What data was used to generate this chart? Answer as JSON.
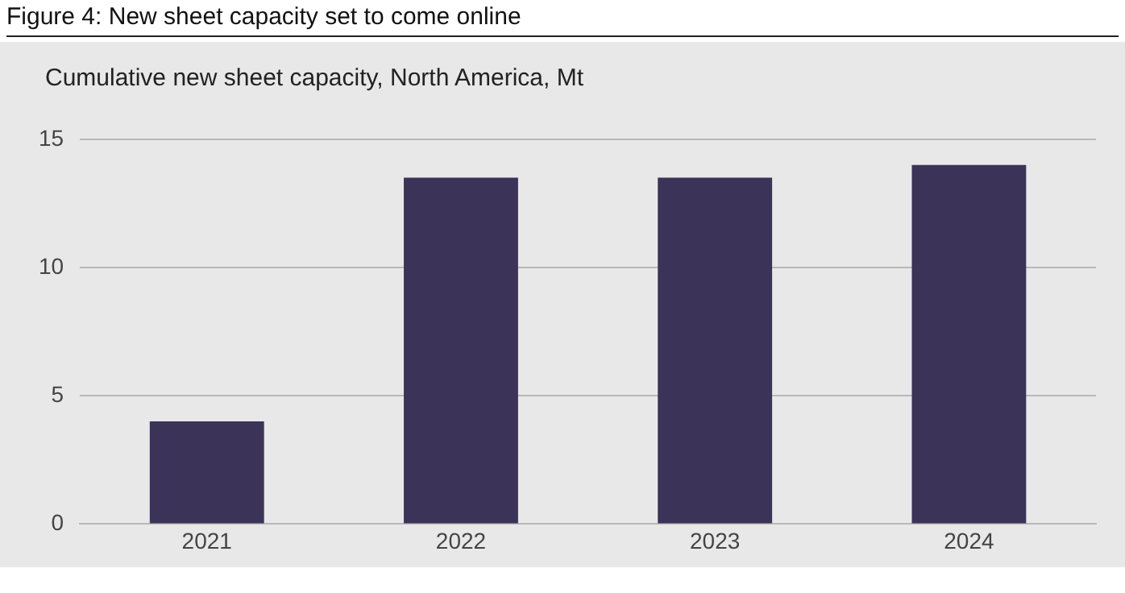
{
  "chart_data": {
    "type": "bar",
    "title": "Figure 4: New sheet capacity set to come online",
    "subtitle": "Cumulative new sheet capacity, North America, Mt",
    "categories": [
      "2021",
      "2022",
      "2023",
      "2024"
    ],
    "values": [
      4,
      13.5,
      13.5,
      14
    ],
    "color": "#3b3358",
    "ylim": [
      0,
      15
    ],
    "yticks": [
      0,
      5,
      10,
      15
    ],
    "grid": "y"
  }
}
